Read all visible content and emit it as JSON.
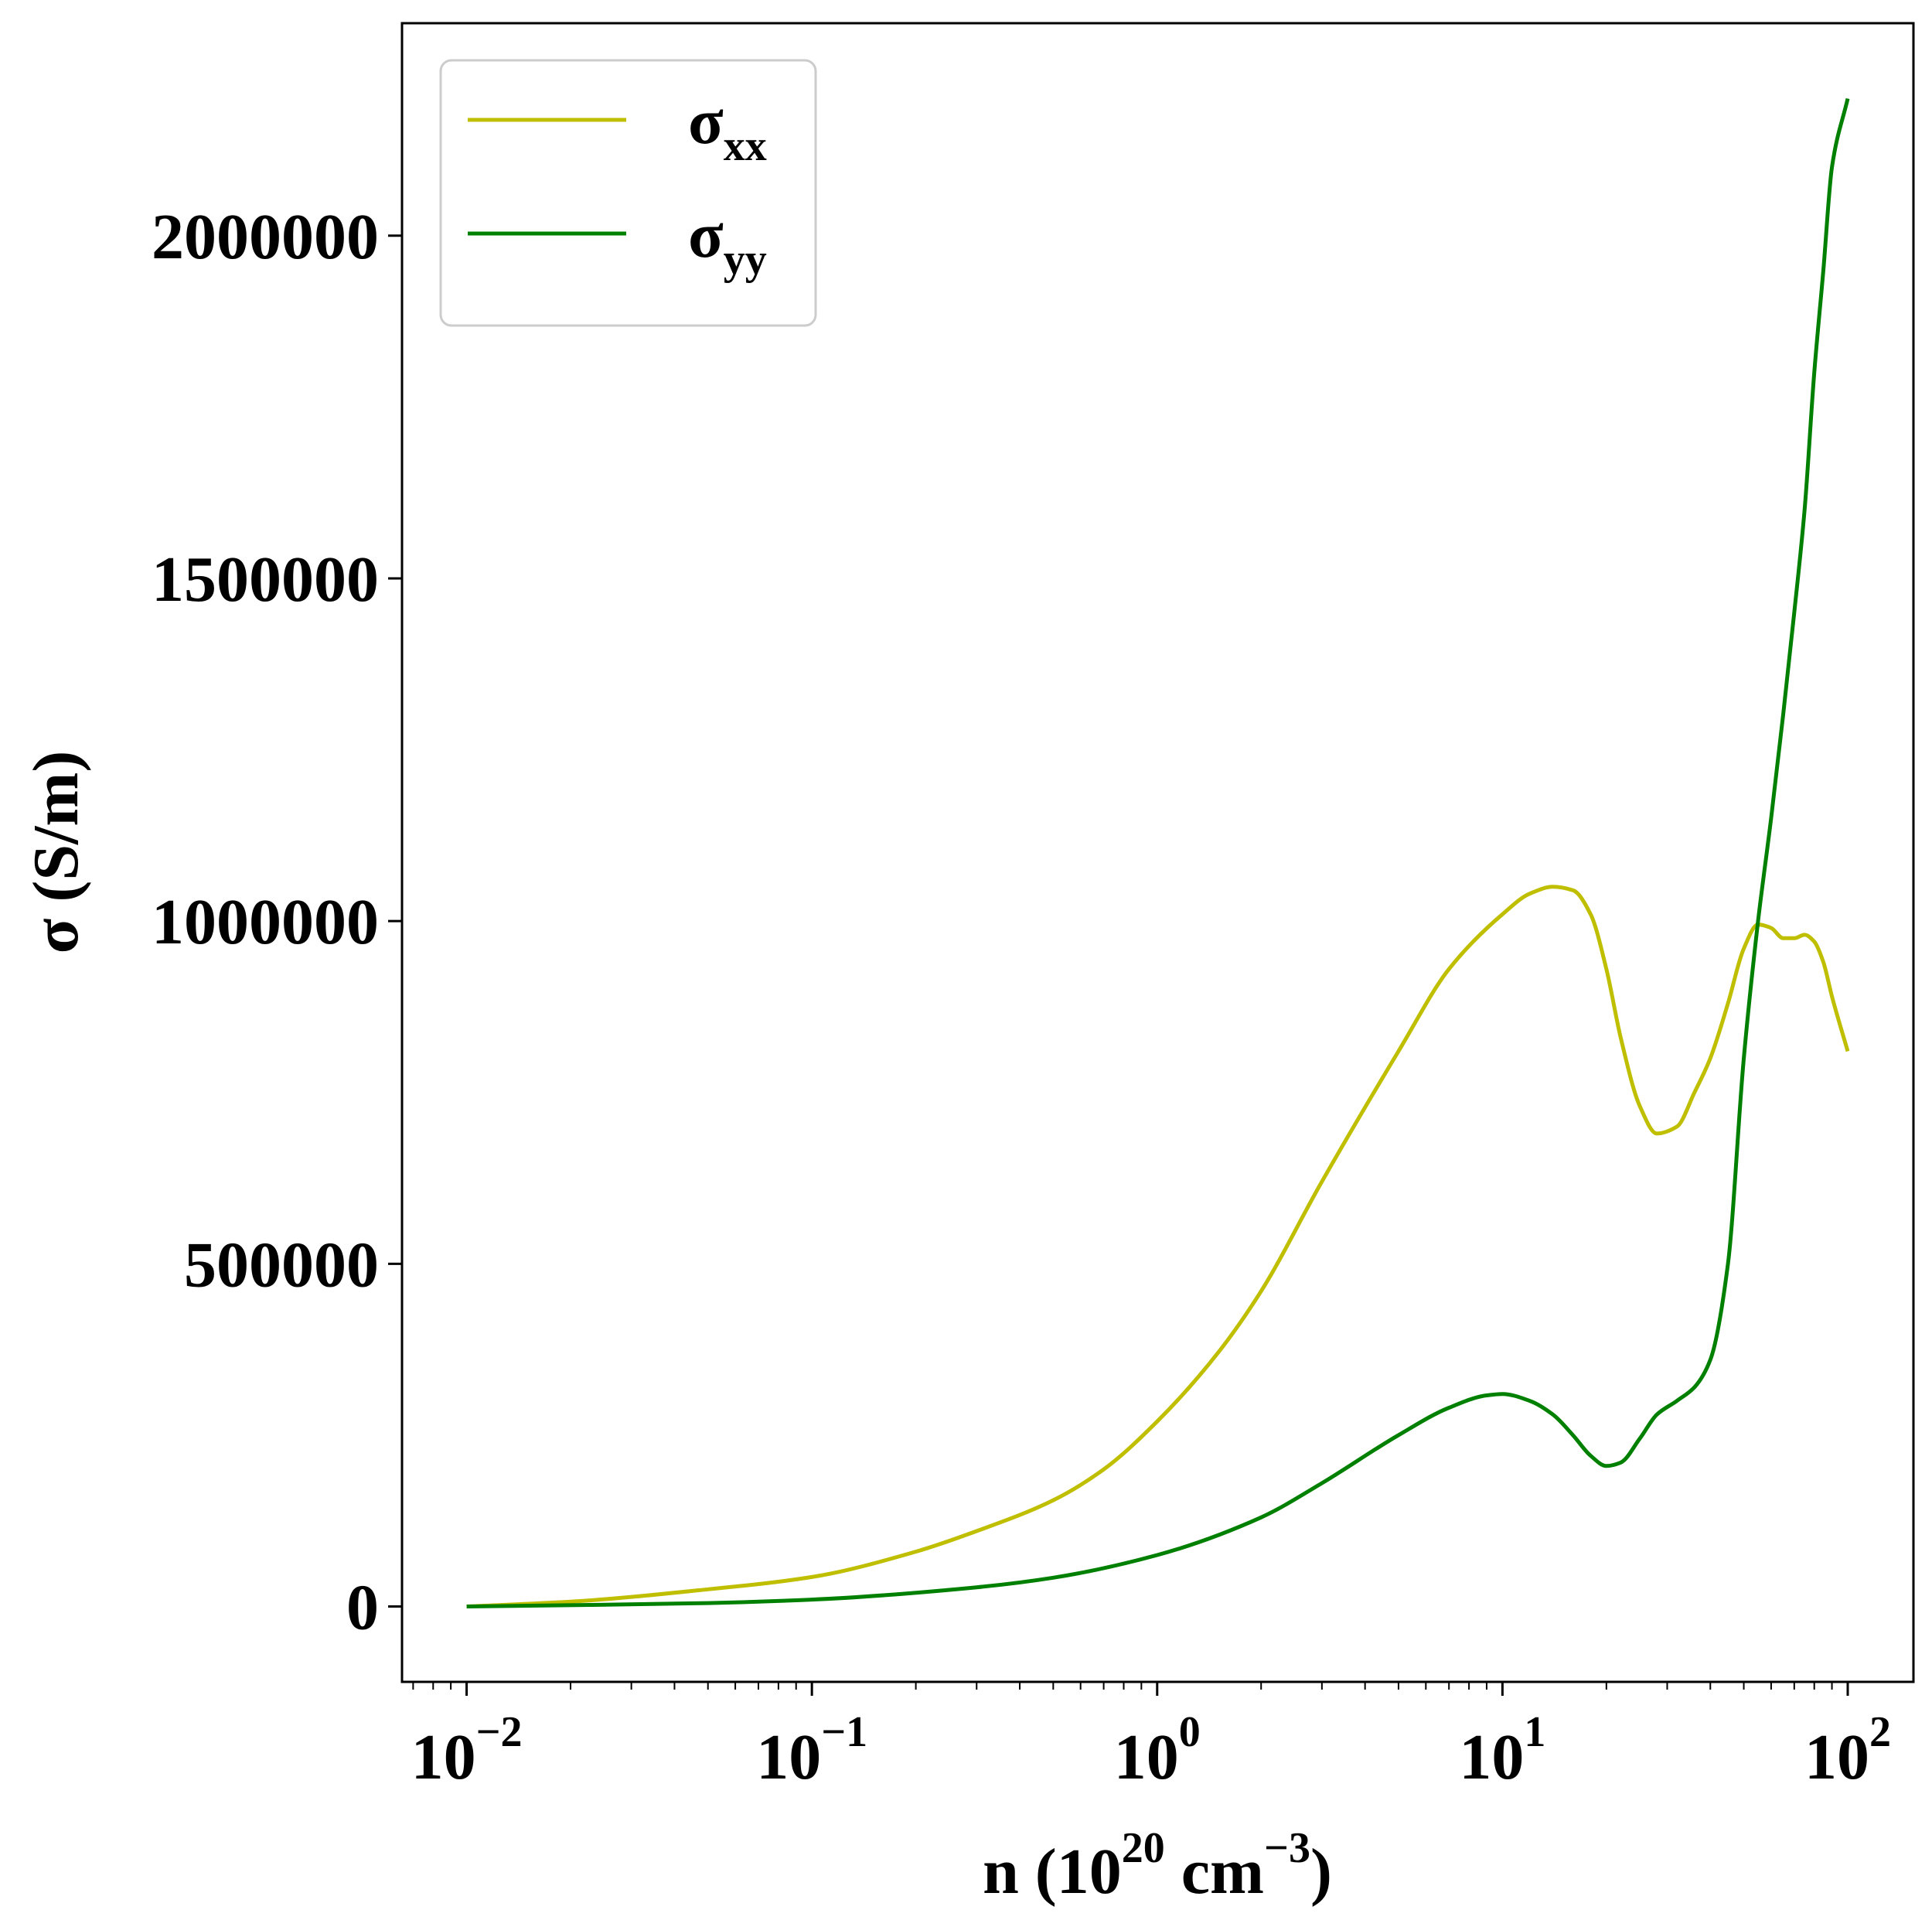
{
  "chart_data": {
    "type": "line",
    "xlabel": {
      "base": "n (10",
      "exp1": "20",
      "mid": " cm",
      "exp2": "−3",
      "end": ")"
    },
    "ylabel": "σ (S/m)",
    "xscale": "log",
    "xlim": [
      0.0065,
      155
    ],
    "ylim": [
      -110000,
      2310000
    ],
    "grid": false,
    "legend_position": "top-left",
    "x_ticks": [
      {
        "value": 0.01,
        "base": "10",
        "exp": "−2"
      },
      {
        "value": 0.1,
        "base": "10",
        "exp": "−1"
      },
      {
        "value": 1,
        "base": "10",
        "exp": "0"
      },
      {
        "value": 10,
        "base": "10",
        "exp": "1"
      },
      {
        "value": 100,
        "base": "10",
        "exp": "2"
      }
    ],
    "y_ticks": [
      {
        "value": 0,
        "label": "0"
      },
      {
        "value": 500000,
        "label": "500000"
      },
      {
        "value": 1000000,
        "label": "1000000"
      },
      {
        "value": 1500000,
        "label": "1500000"
      },
      {
        "value": 2000000,
        "label": "2000000"
      }
    ],
    "series": [
      {
        "name": "xx",
        "legend_symbol": "σ",
        "color": "#bfbf00",
        "x": [
          0.01,
          0.02,
          0.05,
          0.1,
          0.2,
          0.3,
          0.5,
          0.7,
          1,
          1.5,
          2,
          3,
          5,
          7,
          10,
          12,
          14,
          16,
          18,
          20,
          22,
          25,
          28,
          32,
          36,
          40,
          45,
          50,
          55,
          60,
          65,
          70,
          75,
          80,
          85,
          90,
          100
        ],
        "y": [
          0,
          7000,
          25000,
          43000,
          80000,
          110000,
          155000,
          200000,
          270000,
          370000,
          460000,
          620000,
          810000,
          930000,
          1010000,
          1040000,
          1050000,
          1045000,
          1010000,
          930000,
          830000,
          730000,
          690000,
          700000,
          750000,
          800000,
          880000,
          960000,
          995000,
          990000,
          975000,
          975000,
          980000,
          970000,
          940000,
          890000,
          810000
        ]
      },
      {
        "name": "yy",
        "legend_symbol": "σ",
        "color": "#008000",
        "x": [
          0.01,
          0.05,
          0.1,
          0.3,
          0.5,
          1,
          2,
          3,
          5,
          7,
          9,
          10,
          12,
          14,
          16,
          18,
          20,
          22,
          25,
          28,
          32,
          36,
          40,
          45,
          50,
          55,
          60,
          65,
          70,
          75,
          80,
          85,
          90,
          100
        ],
        "y": [
          0,
          5000,
          10000,
          28000,
          42000,
          75000,
          130000,
          180000,
          250000,
          290000,
          308000,
          310000,
          300000,
          280000,
          250000,
          220000,
          205000,
          210000,
          245000,
          280000,
          300000,
          320000,
          360000,
          500000,
          800000,
          1000000,
          1150000,
          1300000,
          1450000,
          1600000,
          1800000,
          1950000,
          2100000,
          2200000
        ]
      }
    ]
  }
}
